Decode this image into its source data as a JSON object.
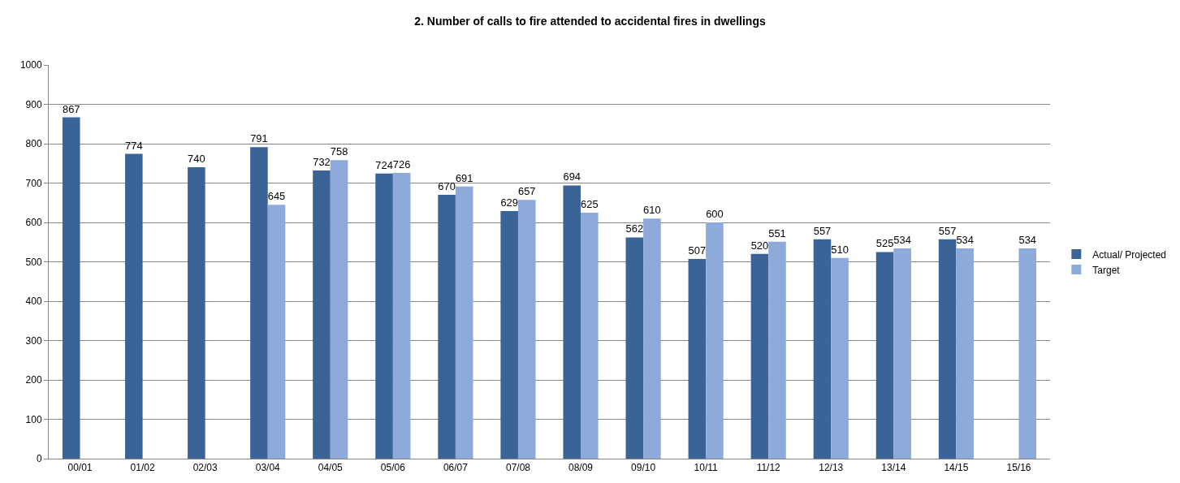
{
  "chart_data": {
    "type": "bar",
    "title": "2. Number of calls to fire attended to accidental fires in dwellings",
    "categories": [
      "00/01",
      "01/02",
      "02/03",
      "03/04",
      "04/05",
      "05/06",
      "06/07",
      "07/08",
      "08/09",
      "09/10",
      "10/11",
      "11/12",
      "12/13",
      "13/14",
      "14/15",
      "15/16"
    ],
    "series": [
      {
        "name": "Actual/ Projected",
        "color": "#3a6498",
        "values": [
          867,
          774,
          740,
          791,
          732,
          724,
          670,
          629,
          694,
          562,
          507,
          520,
          557,
          525,
          557,
          null
        ]
      },
      {
        "name": "Target",
        "color": "#8eaadb",
        "values": [
          null,
          null,
          null,
          645,
          758,
          726,
          691,
          657,
          625,
          610,
          600,
          551,
          510,
          534,
          534,
          534
        ]
      }
    ],
    "ylim": [
      0,
      1000
    ],
    "yticks": [
      0,
      100,
      200,
      300,
      400,
      500,
      600,
      700,
      800,
      900,
      1000
    ],
    "grid": "y",
    "legend": "right",
    "data_labels": true
  }
}
